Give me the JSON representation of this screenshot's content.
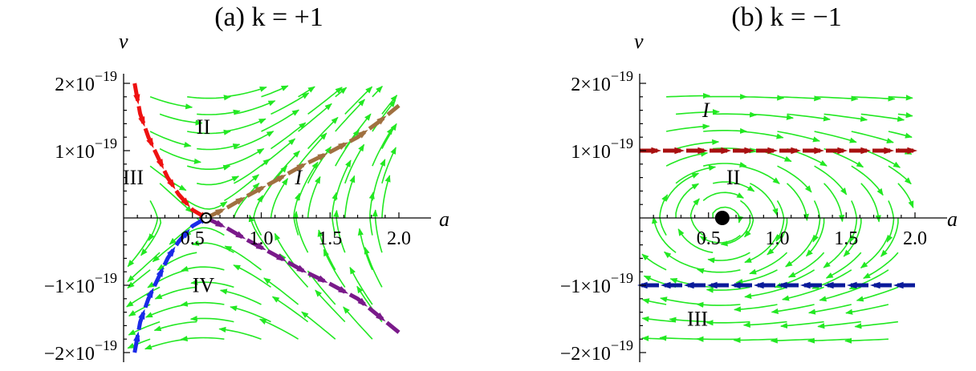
{
  "colors": {
    "streamline": "#22e822",
    "red": "#ee1111",
    "brown": "#a07040",
    "blue": "#1a2ae8",
    "purple": "#7a1a8a",
    "darkred": "#a81010",
    "navy": "#0a1a9a"
  },
  "chart_data": [
    {
      "type": "line",
      "title": "(a) k = +1",
      "xlabel": "a",
      "ylabel": "v",
      "xlim": [
        0,
        2.0
      ],
      "ylim": [
        -2e-19,
        2e-19
      ],
      "x_ticks": [
        {
          "value": 0.5,
          "label": "0.5"
        },
        {
          "value": 1.0,
          "label": "1.0"
        },
        {
          "value": 1.5,
          "label": "1.5"
        },
        {
          "value": 2.0,
          "label": "2.0"
        }
      ],
      "y_ticks": [
        {
          "value": 2e-19,
          "mantissa": "2",
          "times": "×10",
          "exp": "−19"
        },
        {
          "value": 1e-19,
          "mantissa": "1",
          "times": "×10",
          "exp": "−19"
        },
        {
          "value": -1e-19,
          "mantissa": "−1",
          "times": "×10",
          "exp": "−19"
        },
        {
          "value": -2e-19,
          "mantissa": "−2",
          "times": "×10",
          "exp": "−19"
        }
      ],
      "regions": [
        {
          "label": "II",
          "a": 0.58,
          "v": 1.25e-19
        },
        {
          "label": "III",
          "a": 0.07,
          "v": 5e-20
        },
        {
          "label": "I",
          "a": 1.27,
          "v": 5e-20,
          "italic": true
        },
        {
          "label": "IV",
          "a": 0.58,
          "v": -1.1e-19
        }
      ],
      "fixed_point": {
        "a": 0.6,
        "v": 0,
        "style": "open"
      },
      "series": [
        {
          "color_key": "red",
          "direction": "in",
          "points": [
            [
              0.08,
              2e-19
            ],
            [
              0.12,
              1.55e-19
            ],
            [
              0.18,
              1.2e-19
            ],
            [
              0.25,
              9e-20
            ],
            [
              0.32,
              6e-20
            ],
            [
              0.4,
              3.5e-20
            ],
            [
              0.5,
              1.2e-20
            ],
            [
              0.6,
              0
            ]
          ]
        },
        {
          "color_key": "brown",
          "direction": "out",
          "points": [
            [
              0.6,
              0
            ],
            [
              0.75,
              1.5e-20
            ],
            [
              0.9,
              3.3e-20
            ],
            [
              1.1,
              5.5e-20
            ],
            [
              1.3,
              7.8e-20
            ],
            [
              1.5,
              9.8e-20
            ],
            [
              1.7,
              1.2e-19
            ],
            [
              1.85,
              1.42e-19
            ],
            [
              2.0,
              1.67e-19
            ]
          ]
        },
        {
          "color_key": "blue",
          "direction": "in",
          "points": [
            [
              0.08,
              -2e-19
            ],
            [
              0.12,
              -1.55e-19
            ],
            [
              0.18,
              -1.2e-19
            ],
            [
              0.25,
              -9e-20
            ],
            [
              0.32,
              -6e-20
            ],
            [
              0.4,
              -3.5e-20
            ],
            [
              0.5,
              -1.2e-20
            ],
            [
              0.6,
              0
            ]
          ]
        },
        {
          "color_key": "purple",
          "direction": "out",
          "points": [
            [
              0.6,
              0
            ],
            [
              0.75,
              -1.5e-20
            ],
            [
              0.9,
              -3.3e-20
            ],
            [
              1.1,
              -5.5e-20
            ],
            [
              1.3,
              -7.8e-20
            ],
            [
              1.5,
              -9.8e-20
            ],
            [
              1.7,
              -1.2e-19
            ],
            [
              1.85,
              -1.45e-19
            ],
            [
              2.0,
              -1.7e-19
            ]
          ]
        }
      ]
    },
    {
      "type": "line",
      "title": "(b) k = −1",
      "xlabel": "a",
      "ylabel": "v",
      "xlim": [
        0,
        2.0
      ],
      "ylim": [
        -2e-19,
        2e-19
      ],
      "x_ticks": [
        {
          "value": 0.5,
          "label": "0.5"
        },
        {
          "value": 1.0,
          "label": "1.0"
        },
        {
          "value": 1.5,
          "label": "1.5"
        },
        {
          "value": 2.0,
          "label": "2.0"
        }
      ],
      "y_ticks": [
        {
          "value": 2e-19,
          "mantissa": "2",
          "times": "×10",
          "exp": "−19"
        },
        {
          "value": 1e-19,
          "mantissa": "1",
          "times": "×10",
          "exp": "−19"
        },
        {
          "value": -1e-19,
          "mantissa": "−1",
          "times": "×10",
          "exp": "−19"
        },
        {
          "value": -2e-19,
          "mantissa": "−2",
          "times": "×10",
          "exp": "−19"
        }
      ],
      "regions": [
        {
          "label": "I",
          "a": 0.48,
          "v": 1.5e-19,
          "italic": true
        },
        {
          "label": "II",
          "a": 0.68,
          "v": 5e-20
        },
        {
          "label": "III",
          "a": 0.42,
          "v": -1.6e-19
        }
      ],
      "fixed_point": {
        "a": 0.6,
        "v": 0,
        "style": "filled"
      },
      "series": [
        {
          "color_key": "darkred",
          "direction": "right",
          "points": [
            [
              0.0,
              1e-19
            ],
            [
              2.0,
              1e-19
            ]
          ]
        },
        {
          "color_key": "navy",
          "direction": "left",
          "points": [
            [
              2.0,
              -1e-19
            ],
            [
              0.0,
              -1e-19
            ]
          ]
        }
      ]
    }
  ]
}
